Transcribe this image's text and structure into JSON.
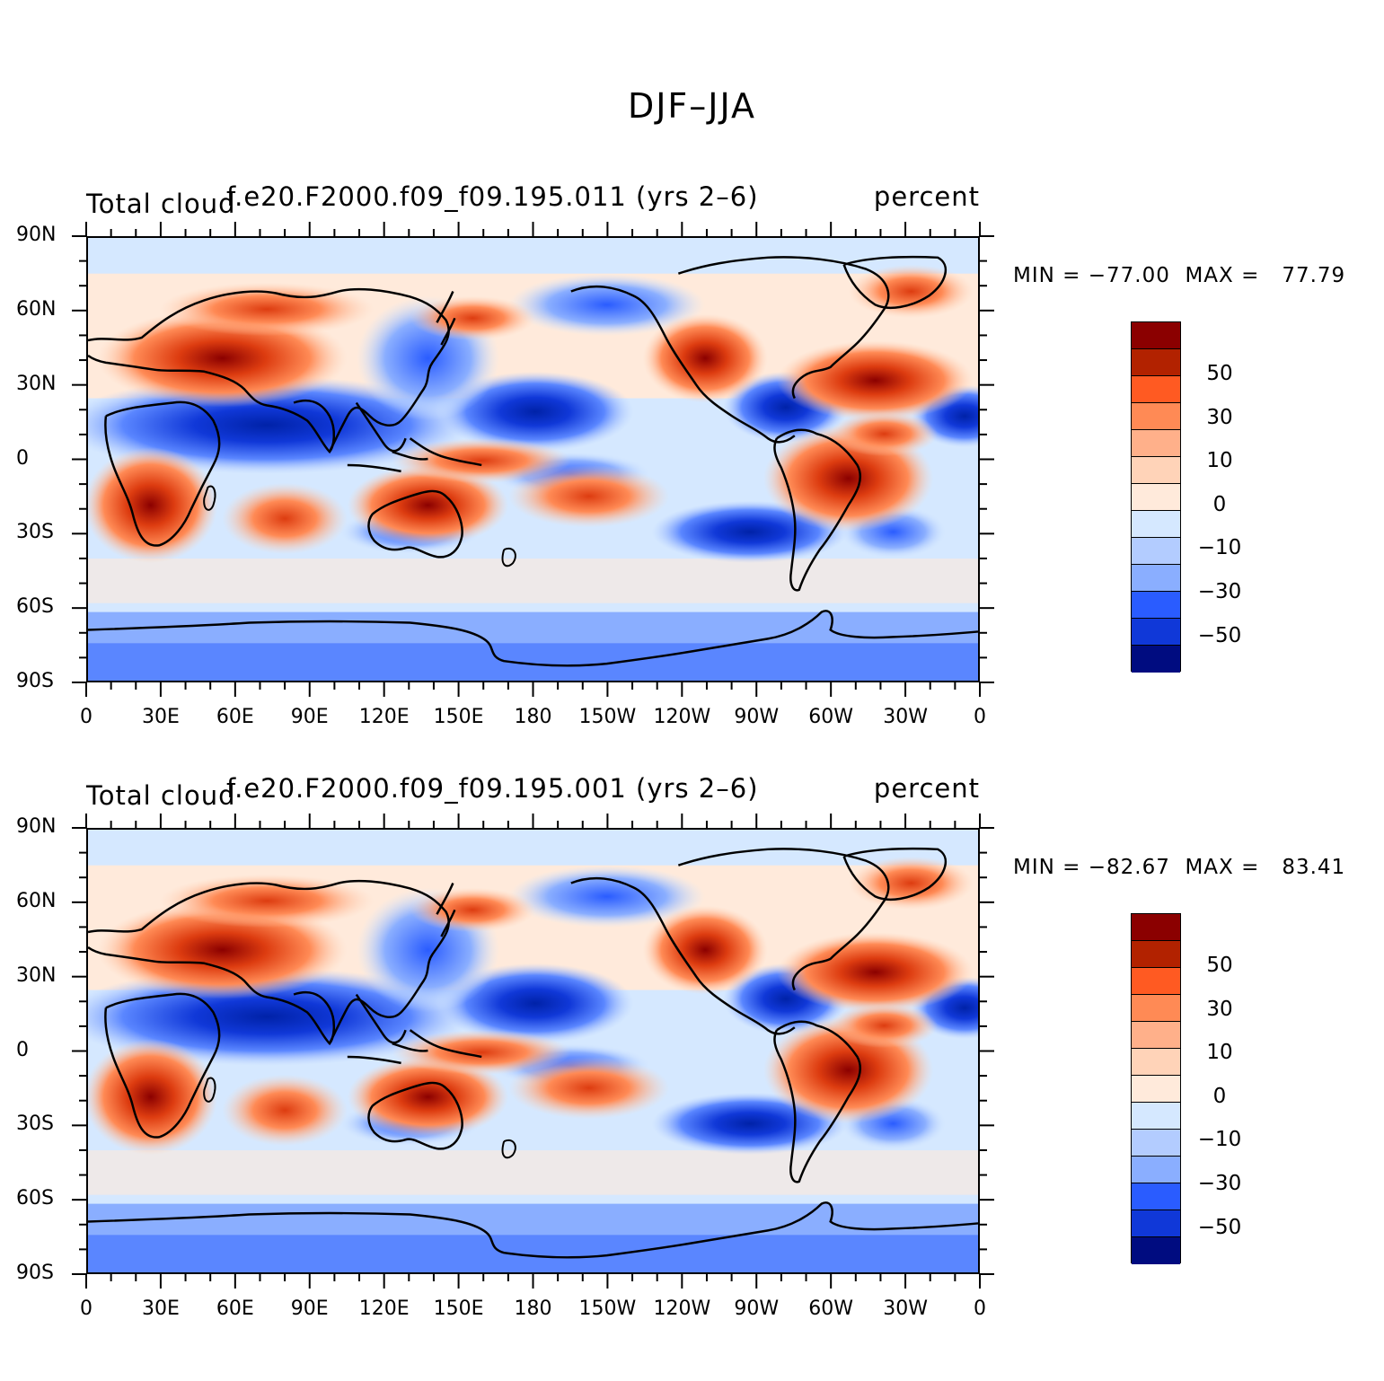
{
  "title": "DJF–JJA",
  "panels": [
    {
      "left_label": "Total cloud",
      "center_label": "f.e20.F2000.f09_f09.195.011 (yrs 2–6)",
      "right_label": "percent",
      "min_max": "MIN = −77.00  MAX =   77.79"
    },
    {
      "left_label": "Total cloud",
      "center_label": "f.e20.F2000.f09_f09.195.001 (yrs 2–6)",
      "right_label": "percent",
      "min_max": "MIN = −82.67  MAX =   83.41"
    }
  ],
  "lat_labels": [
    "90N",
    "60N",
    "30N",
    "0",
    "30S",
    "60S",
    "90S"
  ],
  "lon_labels": [
    "0",
    "30E",
    "60E",
    "90E",
    "120E",
    "150E",
    "180",
    "150W",
    "120W",
    "90W",
    "60W",
    "30W",
    "0"
  ],
  "colorbar": {
    "labels": [
      "50",
      "30",
      "10",
      "0",
      "−10",
      "−30",
      "−50"
    ],
    "colors": [
      "#8b0000",
      "#b22200",
      "#dd3c10",
      "#ff5a22",
      "#ff8a55",
      "#ffb08a",
      "#ffd3b8",
      "#ffeadb",
      "#d5e8ff",
      "#b3ccff",
      "#8aaeff",
      "#5a86ff",
      "#2a5cff",
      "#1038d8",
      "#0022a8",
      "#000c80"
    ]
  }
}
